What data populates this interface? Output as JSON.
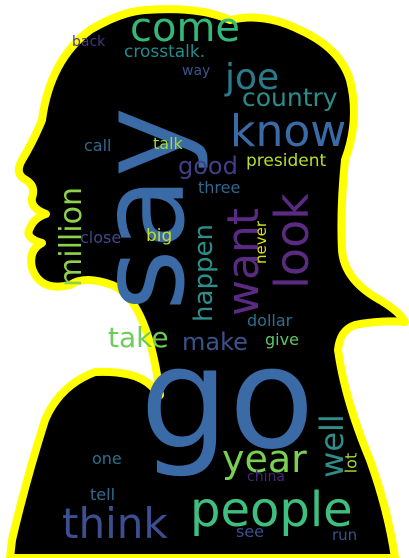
{
  "colors": {
    "outline": "#ffff00",
    "background": "#000000",
    "outside": "#ffffff"
  },
  "words": [
    {
      "text": "go",
      "color": "#3b6ba7"
    },
    {
      "text": "say",
      "color": "#3b6ba7"
    },
    {
      "text": "people",
      "color": "#3fbf7f"
    },
    {
      "text": "know",
      "color": "#3b6ba7"
    },
    {
      "text": "look",
      "color": "#5b2a82"
    },
    {
      "text": "want",
      "color": "#5b2a82"
    },
    {
      "text": "think",
      "color": "#3d4f91"
    },
    {
      "text": "come",
      "color": "#35b779"
    },
    {
      "text": "joe",
      "color": "#2a7b8e"
    },
    {
      "text": "country",
      "color": "#2a8d8c"
    },
    {
      "text": "million",
      "color": "#8ed24c"
    },
    {
      "text": "year",
      "color": "#7ad151"
    },
    {
      "text": "well",
      "color": "#2f8e8c"
    },
    {
      "text": "good",
      "color": "#433e85"
    },
    {
      "text": "happen",
      "color": "#2c8f8c"
    },
    {
      "text": "take",
      "color": "#6ccd5a"
    },
    {
      "text": "make",
      "color": "#3b528b"
    },
    {
      "text": "president",
      "color": "#b8de29"
    },
    {
      "text": "crosstalk.",
      "color": "#228c8d"
    },
    {
      "text": "back",
      "color": "#453781"
    },
    {
      "text": "way",
      "color": "#3a548c"
    },
    {
      "text": "call",
      "color": "#31688e"
    },
    {
      "text": "talk",
      "color": "#a0da39"
    },
    {
      "text": "three",
      "color": "#31678e"
    },
    {
      "text": "close",
      "color": "#3e4a89"
    },
    {
      "text": "big",
      "color": "#c2df23"
    },
    {
      "text": "never",
      "color": "#d8e219"
    },
    {
      "text": "dollar",
      "color": "#2c718e"
    },
    {
      "text": "give",
      "color": "#5cc863"
    },
    {
      "text": "one",
      "color": "#2d708e"
    },
    {
      "text": "lot",
      "color": "#a5db36"
    },
    {
      "text": "tell",
      "color": "#2f6b8e"
    },
    {
      "text": "china",
      "color": "#482576"
    },
    {
      "text": "see",
      "color": "#3d4e8a"
    },
    {
      "text": "run",
      "color": "#3a538b"
    }
  ]
}
